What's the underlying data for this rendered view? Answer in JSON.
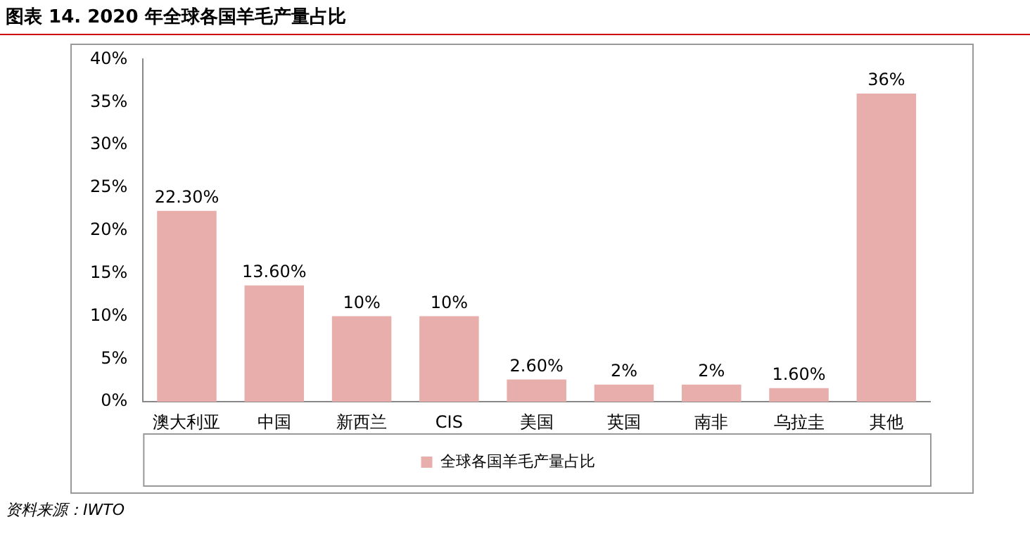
{
  "chart_data": {
    "type": "bar",
    "title": "图表 14. 2020 年全球各国羊毛产量占比",
    "categories": [
      "澳大利亚",
      "中国",
      "新西兰",
      "CIS",
      "美国",
      "英国",
      "南非",
      "乌拉圭",
      "其他"
    ],
    "series": [
      {
        "name": "全球各国羊毛产量占比",
        "color": "#e8aeac",
        "values": [
          22.3,
          13.6,
          10,
          10,
          2.6,
          2,
          2,
          1.6,
          36
        ],
        "value_labels": [
          "22.30%",
          "13.60%",
          "10%",
          "10%",
          "2.60%",
          "2%",
          "2%",
          "1.60%",
          "36%"
        ]
      }
    ],
    "ylim": [
      0,
      40
    ],
    "yticks": [
      {
        "value": 0,
        "label": "0%"
      },
      {
        "value": 5,
        "label": "5%"
      },
      {
        "value": 10,
        "label": "10%"
      },
      {
        "value": 15,
        "label": "15%"
      },
      {
        "value": 20,
        "label": "20%"
      },
      {
        "value": 25,
        "label": "25%"
      },
      {
        "value": 30,
        "label": "30%"
      },
      {
        "value": 35,
        "label": "35%"
      },
      {
        "value": 40,
        "label": "40%"
      }
    ],
    "grid": false,
    "legend": "bottom",
    "annotations": [
      "资料来源：IWTO"
    ]
  }
}
